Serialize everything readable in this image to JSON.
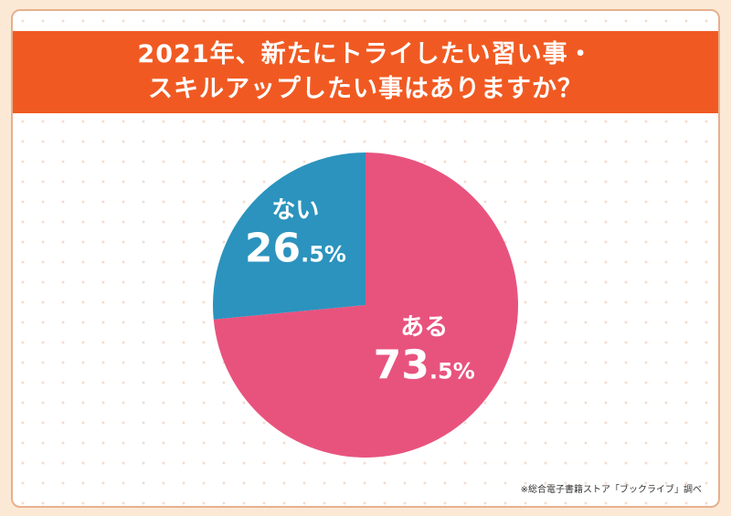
{
  "chart_data": {
    "type": "pie",
    "title_lines": [
      "2021年、新たにトライしたい習い事・",
      "スキルアップしたい事はありますか？"
    ],
    "slices": [
      {
        "label": "ある",
        "value": 73.5,
        "color": "#e8537e"
      },
      {
        "label": "ない",
        "value": 26.5,
        "color": "#2b93be"
      }
    ],
    "unit": "%"
  },
  "source_note": "※総合電子書籍ストア「ブックライブ」調べ"
}
